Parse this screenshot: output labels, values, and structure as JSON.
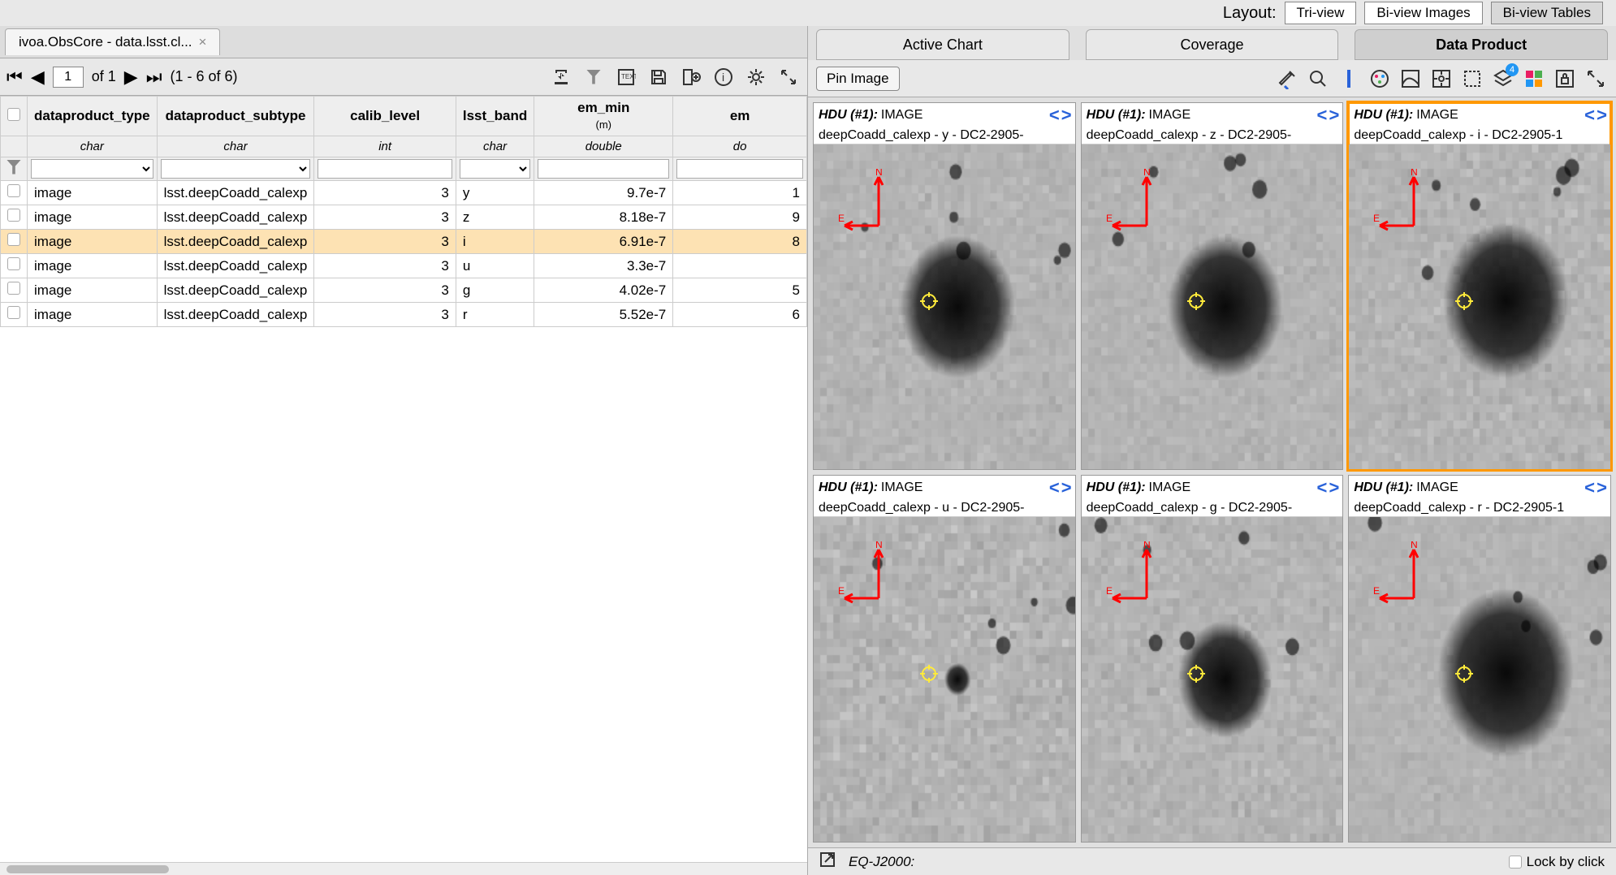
{
  "layout": {
    "label": "Layout:",
    "options": [
      "Tri-view",
      "Bi-view Images",
      "Bi-view Tables"
    ],
    "selected": 2
  },
  "leftTab": {
    "title": "ivoa.ObsCore - data.lsst.cl..."
  },
  "paging": {
    "page": "1",
    "of": "of 1",
    "range": "(1 - 6 of 6)"
  },
  "columns": [
    {
      "name": "dataproduct_type",
      "type": "char"
    },
    {
      "name": "dataproduct_subtype",
      "type": "char"
    },
    {
      "name": "calib_level",
      "type": "int"
    },
    {
      "name": "lsst_band",
      "type": "char"
    },
    {
      "name": "em_min",
      "unit": "(m)",
      "type": "double"
    },
    {
      "name": "em",
      "type": "do"
    }
  ],
  "rows": [
    {
      "dp": "image",
      "sub": "lsst.deepCoadd_calexp",
      "cal": "3",
      "band": "y",
      "em": "9.7e-7",
      "em2": "1"
    },
    {
      "dp": "image",
      "sub": "lsst.deepCoadd_calexp",
      "cal": "3",
      "band": "z",
      "em": "8.18e-7",
      "em2": "9"
    },
    {
      "dp": "image",
      "sub": "lsst.deepCoadd_calexp",
      "cal": "3",
      "band": "i",
      "em": "6.91e-7",
      "em2": "8",
      "sel": true
    },
    {
      "dp": "image",
      "sub": "lsst.deepCoadd_calexp",
      "cal": "3",
      "band": "u",
      "em": "3.3e-7",
      "em2": ""
    },
    {
      "dp": "image",
      "sub": "lsst.deepCoadd_calexp",
      "cal": "3",
      "band": "g",
      "em": "4.02e-7",
      "em2": "5"
    },
    {
      "dp": "image",
      "sub": "lsst.deepCoadd_calexp",
      "cal": "3",
      "band": "r",
      "em": "5.52e-7",
      "em2": "6"
    }
  ],
  "rightTabs": [
    "Active Chart",
    "Coverage",
    "Data Product"
  ],
  "rightTabActive": 2,
  "pin": "Pin Image",
  "panels": [
    {
      "hdu": "HDU (#1):",
      "iv": "IMAGE",
      "sub": "deepCoadd_calexp - y - DC2-2905-",
      "noise": 0.6,
      "blobX": 0.55,
      "blobY": 0.5,
      "blobR": 0.22
    },
    {
      "hdu": "HDU (#1):",
      "iv": "IMAGE",
      "sub": "deepCoadd_calexp - z - DC2-2905-",
      "noise": 0.55,
      "blobX": 0.55,
      "blobY": 0.5,
      "blobR": 0.22
    },
    {
      "hdu": "HDU (#1):",
      "iv": "IMAGE",
      "sub": "deepCoadd_calexp - i - DC2-2905-1",
      "noise": 0.7,
      "blobX": 0.6,
      "blobY": 0.48,
      "blobR": 0.24,
      "sel": true
    },
    {
      "hdu": "HDU (#1):",
      "iv": "IMAGE",
      "sub": "deepCoadd_calexp - u - DC2-2905-",
      "noise": 0.9,
      "blobX": 0.55,
      "blobY": 0.5,
      "blobR": 0.05
    },
    {
      "hdu": "HDU (#1):",
      "iv": "IMAGE",
      "sub": "deepCoadd_calexp - g - DC2-2905-",
      "noise": 0.7,
      "blobX": 0.55,
      "blobY": 0.5,
      "blobR": 0.18
    },
    {
      "hdu": "HDU (#1):",
      "iv": "IMAGE",
      "sub": "deepCoadd_calexp - r - DC2-2905-1",
      "noise": 0.5,
      "blobX": 0.6,
      "blobY": 0.48,
      "blobR": 0.26
    }
  ],
  "status": {
    "coord": "EQ-J2000:",
    "lock": "Lock by click"
  },
  "toolbarBadge": "4"
}
